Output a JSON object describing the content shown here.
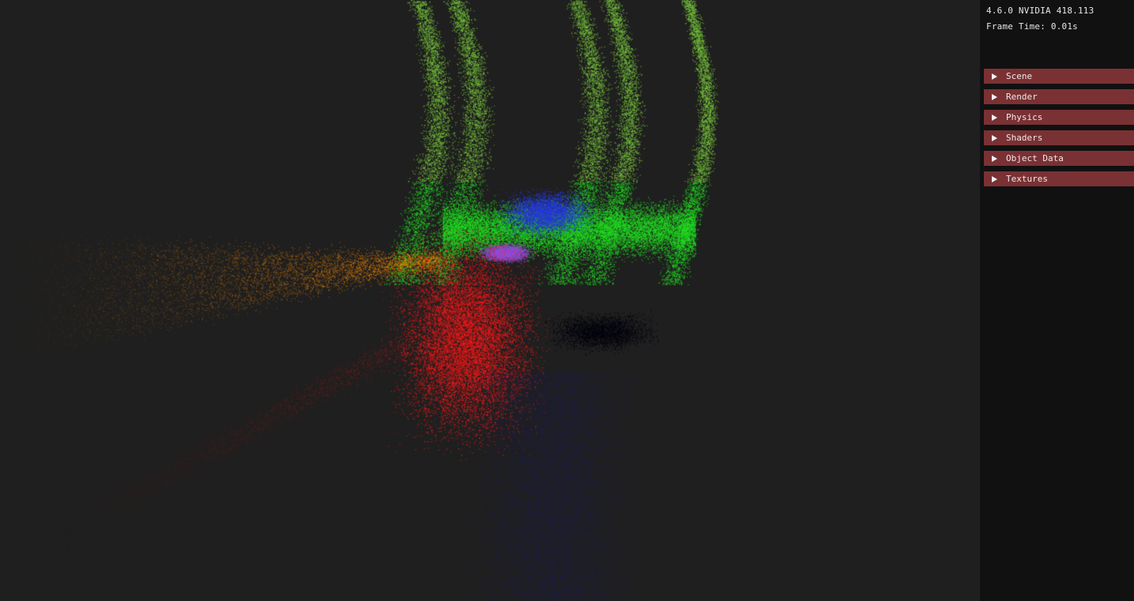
{
  "overlay": {
    "version": "4.6.0 NVIDIA 418.113",
    "frame_time": "Frame Time: 0.01s"
  },
  "menu": {
    "items": [
      {
        "label": "Scene"
      },
      {
        "label": "Render"
      },
      {
        "label": "Physics"
      },
      {
        "label": "Shaders"
      },
      {
        "label": "Object Data"
      },
      {
        "label": "Textures"
      }
    ]
  },
  "colors": {
    "background": "#1f1f1f",
    "panel": "#111111",
    "menu_header": "#7a3134",
    "particles_red": "#ff1a1a",
    "particles_green": "#22e022",
    "particles_blue": "#2a3ae0",
    "particles_orange": "#ff8c00"
  }
}
